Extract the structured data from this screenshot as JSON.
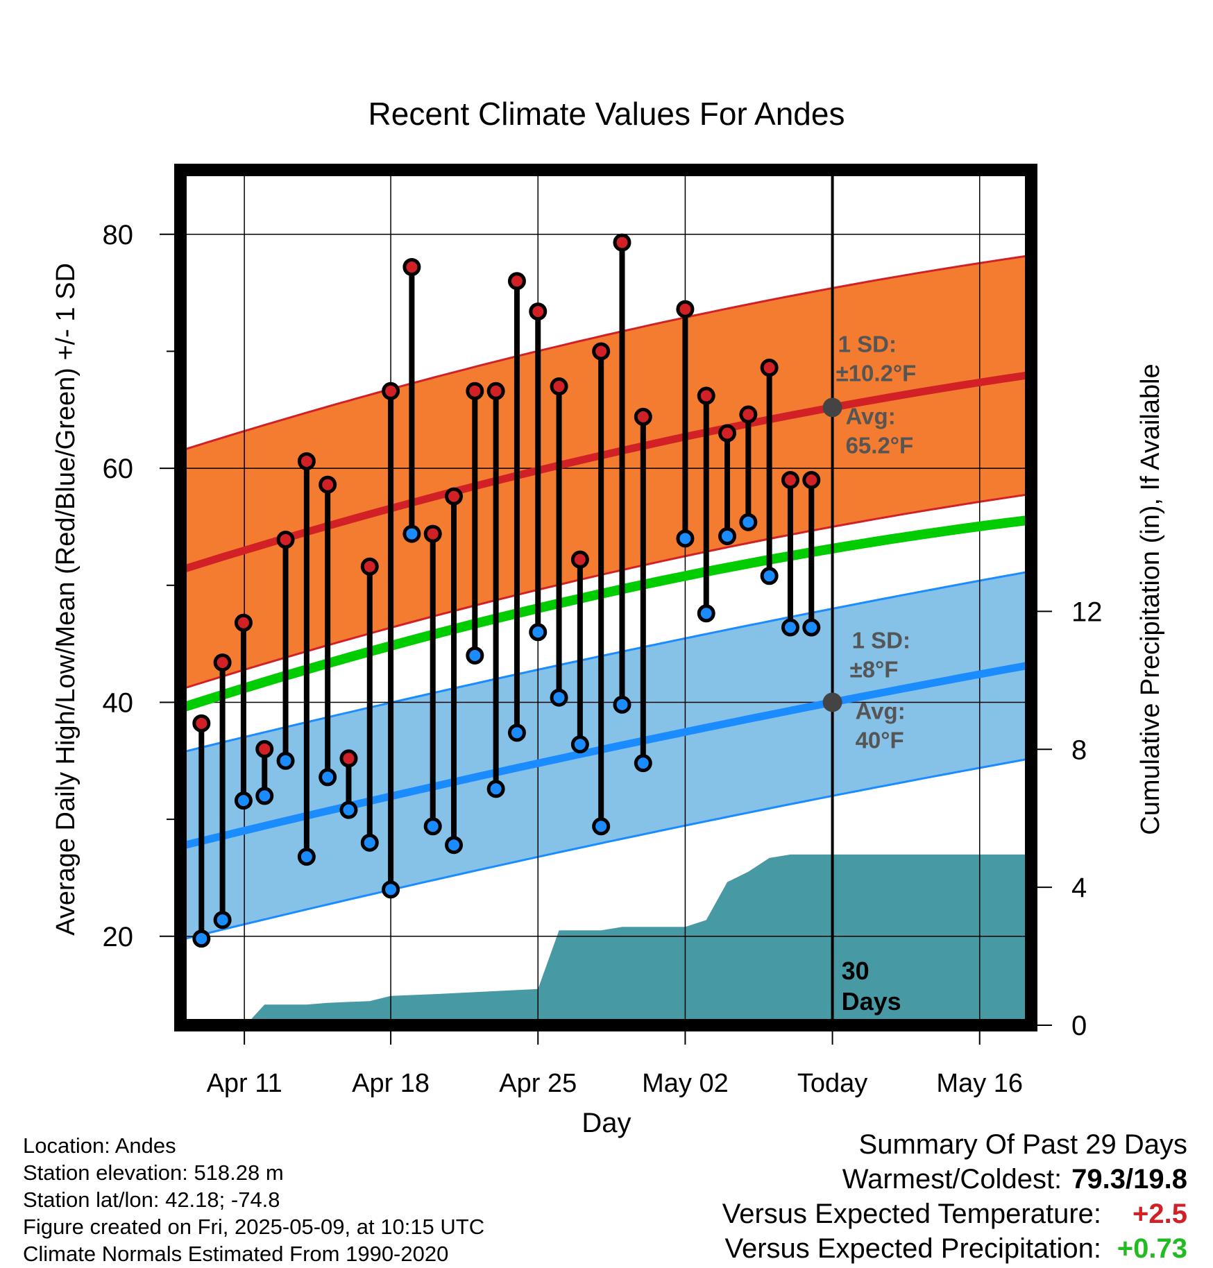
{
  "chart_data": {
    "type": "line",
    "title": "Recent Climate Values For Andes",
    "xlabel": "Day",
    "ylabel": "Average Daily High/Low/Mean (Red/Blue/Green) +/- 1 SD",
    "y2label": "Cumulative Precipitation (in), If Available",
    "x_tick_labels": [
      "Apr 11",
      "Apr 18",
      "Apr 25",
      "May 02",
      "Today",
      "May 16"
    ],
    "x_tick_days": [
      3.04,
      10.0,
      17.0,
      24.0,
      31.0,
      38.0
    ],
    "y_ticks": [
      20,
      40,
      60,
      80
    ],
    "y2_ticks": [
      0,
      4,
      8,
      12
    ],
    "xlim_days": [
      0,
      40.45
    ],
    "ylim": [
      12.4,
      85.5
    ],
    "y2lim": [
      0,
      24.8
    ],
    "today_day": 31.0,
    "today_annotation": [
      "30",
      "Days"
    ],
    "highs": [
      38.2,
      43.4,
      46.8,
      36.0,
      53.9,
      60.6,
      58.6,
      35.2,
      51.6,
      66.6,
      77.2,
      54.4,
      57.6,
      66.6,
      66.6,
      76.0,
      73.4,
      67.0,
      52.2,
      70.0,
      79.3,
      64.4,
      null,
      73.6,
      66.2,
      63.0,
      64.6,
      68.6,
      59.0,
      59.0
    ],
    "lows": [
      19.8,
      21.4,
      31.6,
      32.0,
      35.0,
      26.8,
      33.6,
      30.8,
      28.0,
      24.0,
      54.4,
      29.4,
      27.8,
      44.0,
      32.6,
      37.4,
      46.0,
      40.4,
      36.4,
      29.4,
      39.8,
      34.8,
      null,
      54.0,
      47.6,
      54.2,
      55.4,
      50.8,
      46.4,
      46.4
    ],
    "normal_high": {
      "start": 51.3,
      "today": 65.2,
      "end": 68.0
    },
    "normal_low": {
      "start": 27.7,
      "today": 40.0,
      "end": 43.2
    },
    "normal_mean": {
      "start": 39.5,
      "end": 55.6
    },
    "high_sd": "±10.2°F",
    "low_sd": "±8°F",
    "high_avg": "65.2°F",
    "low_avg": "40°F",
    "precip_cum": [
      [
        3.1,
        0
      ],
      [
        4.0,
        0.6
      ],
      [
        6.0,
        0.6
      ],
      [
        7.0,
        0.65
      ],
      [
        9.0,
        0.7
      ],
      [
        10.0,
        0.85
      ],
      [
        12.0,
        0.9
      ],
      [
        17.0,
        1.05
      ],
      [
        18.0,
        2.75
      ],
      [
        20.0,
        2.75
      ],
      [
        21.0,
        2.85
      ],
      [
        24.0,
        2.85
      ],
      [
        25.0,
        3.05
      ],
      [
        26.0,
        4.15
      ],
      [
        27.0,
        4.45
      ],
      [
        28.0,
        4.85
      ],
      [
        29.0,
        4.95
      ],
      [
        40.45,
        4.95
      ]
    ],
    "band_labels": {
      "sd": "1 SD:",
      "avg": "Avg:"
    },
    "colors": {
      "high": "#d12127",
      "low": "#1a8cff",
      "mean": "#00cc00",
      "high_band": "#f47c30",
      "low_band": "#86c1e8",
      "precip": "#4799a4",
      "marker_today": "#444444"
    }
  },
  "metadata": {
    "location": "Location: Andes",
    "elevation": "Station elevation: 518.28 m",
    "latlon": "Station lat/lon: 42.18; -74.8",
    "created": "Figure created on Fri, 2025-05-09, at 10:15 UTC",
    "normals": "Climate Normals Estimated From 1990-2020"
  },
  "summary": {
    "heading": "Summary Of Past 29 Days",
    "warmest_label": "Warmest/Coldest:",
    "warmest_value": "79.3/19.8",
    "temp_label": "Versus Expected Temperature:",
    "temp_value": "+2.5",
    "temp_color": "#d12127",
    "precip_label": "Versus Expected Precipitation:",
    "precip_value": "+0.73",
    "precip_color": "#22bb22"
  }
}
